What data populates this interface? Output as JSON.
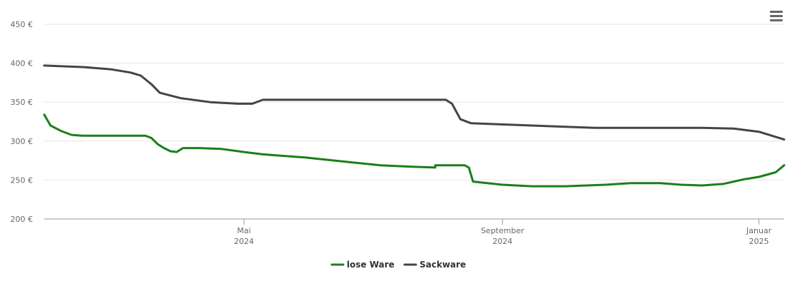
{
  "chart_data": {
    "type": "line",
    "ylim": [
      200,
      450
    ],
    "yticks": [
      200,
      250,
      300,
      350,
      400,
      450
    ],
    "ytick_labels": [
      "200 €",
      "250 €",
      "300 €",
      "350 €",
      "400 €",
      "450 €"
    ],
    "xticks": [
      {
        "date": "2024-05-01",
        "line1": "Mai",
        "line2": "2024"
      },
      {
        "date": "2024-09-01",
        "line1": "September",
        "line2": "2024"
      },
      {
        "date": "2025-01-01",
        "line1": "Januar",
        "line2": "2025"
      }
    ],
    "xlim": [
      "2024-01-27",
      "2025-01-13"
    ],
    "grid": "horizontal",
    "legend_position": "bottom-center",
    "series": [
      {
        "name": "lose Ware",
        "color": "#1a7f1a",
        "points": [
          [
            "2024-01-27",
            334
          ],
          [
            "2024-01-30",
            320
          ],
          [
            "2024-02-04",
            313
          ],
          [
            "2024-02-09",
            308
          ],
          [
            "2024-02-14",
            307
          ],
          [
            "2024-03-01",
            307
          ],
          [
            "2024-03-10",
            307
          ],
          [
            "2024-03-15",
            307
          ],
          [
            "2024-03-18",
            304
          ],
          [
            "2024-03-21",
            296
          ],
          [
            "2024-03-24",
            291
          ],
          [
            "2024-03-27",
            287
          ],
          [
            "2024-03-30",
            286
          ],
          [
            "2024-04-02",
            291
          ],
          [
            "2024-04-10",
            291
          ],
          [
            "2024-04-20",
            290
          ],
          [
            "2024-05-01",
            286
          ],
          [
            "2024-05-10",
            283
          ],
          [
            "2024-05-30",
            279
          ],
          [
            "2024-06-20",
            273
          ],
          [
            "2024-07-05",
            269
          ],
          [
            "2024-07-20",
            267
          ],
          [
            "2024-07-31",
            266
          ],
          [
            "2024-07-31",
            269
          ],
          [
            "2024-08-14",
            269
          ],
          [
            "2024-08-16",
            266
          ],
          [
            "2024-08-18",
            248
          ],
          [
            "2024-09-01",
            244
          ],
          [
            "2024-09-15",
            242
          ],
          [
            "2024-10-01",
            242
          ],
          [
            "2024-10-20",
            244
          ],
          [
            "2024-11-01",
            246
          ],
          [
            "2024-11-15",
            246
          ],
          [
            "2024-11-25",
            244
          ],
          [
            "2024-12-05",
            243
          ],
          [
            "2024-12-15",
            245
          ],
          [
            "2024-12-25",
            251
          ],
          [
            "2025-01-01",
            254
          ],
          [
            "2025-01-09",
            260
          ],
          [
            "2025-01-13",
            269
          ]
        ]
      },
      {
        "name": "Sackware",
        "color": "#444444",
        "points": [
          [
            "2024-01-27",
            397
          ],
          [
            "2024-02-15",
            395
          ],
          [
            "2024-02-28",
            392
          ],
          [
            "2024-03-08",
            388
          ],
          [
            "2024-03-13",
            384
          ],
          [
            "2024-03-18",
            373
          ],
          [
            "2024-03-22",
            362
          ],
          [
            "2024-04-01",
            355
          ],
          [
            "2024-04-15",
            350
          ],
          [
            "2024-04-28",
            348
          ],
          [
            "2024-05-05",
            348
          ],
          [
            "2024-05-10",
            353
          ],
          [
            "2024-06-01",
            353
          ],
          [
            "2024-07-01",
            353
          ],
          [
            "2024-08-05",
            353
          ],
          [
            "2024-08-08",
            348
          ],
          [
            "2024-08-12",
            328
          ],
          [
            "2024-08-17",
            323
          ],
          [
            "2024-09-15",
            320
          ],
          [
            "2024-10-15",
            317
          ],
          [
            "2024-11-15",
            317
          ],
          [
            "2024-12-05",
            317
          ],
          [
            "2024-12-20",
            316
          ],
          [
            "2025-01-01",
            312
          ],
          [
            "2025-01-13",
            302
          ]
        ]
      }
    ]
  }
}
